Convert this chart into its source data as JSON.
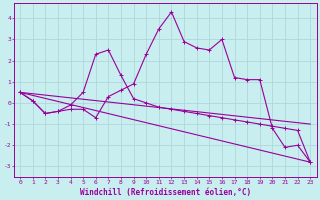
{
  "xlabel": "Windchill (Refroidissement éolien,°C)",
  "background_color": "#c8eef0",
  "line_color": "#990099",
  "grid_color": "#b0d8da",
  "xlim": [
    -0.5,
    23.5
  ],
  "ylim": [
    -3.5,
    4.7
  ],
  "yticks": [
    -3,
    -2,
    -1,
    0,
    1,
    2,
    3,
    4
  ],
  "xticks": [
    0,
    1,
    2,
    3,
    4,
    5,
    6,
    7,
    8,
    9,
    10,
    11,
    12,
    13,
    14,
    15,
    16,
    17,
    18,
    19,
    20,
    21,
    22,
    23
  ],
  "line1_x": [
    0,
    1,
    2,
    3,
    4,
    5,
    6,
    7,
    8,
    9,
    10,
    11,
    12,
    13,
    14,
    15,
    16,
    17,
    18,
    19,
    20,
    21,
    22,
    23
  ],
  "line1_y": [
    0.5,
    0.1,
    -0.5,
    -0.4,
    -0.3,
    -0.3,
    -0.7,
    0.3,
    0.6,
    0.9,
    2.3,
    3.5,
    4.3,
    2.9,
    2.6,
    2.5,
    3.0,
    1.2,
    1.1,
    1.1,
    -1.2,
    -2.1,
    -2.0,
    -2.8
  ],
  "line2_x": [
    0,
    1,
    2,
    3,
    4,
    5,
    6,
    7,
    8,
    9,
    10,
    11,
    12,
    13,
    14,
    15,
    16,
    17,
    18,
    19,
    20,
    21,
    22,
    23
  ],
  "line2_y": [
    0.5,
    0.1,
    -0.5,
    -0.4,
    -0.1,
    0.5,
    2.3,
    2.5,
    1.3,
    0.2,
    0.0,
    -0.2,
    -0.3,
    -0.4,
    -0.5,
    -0.6,
    -0.7,
    -0.8,
    -0.9,
    -1.0,
    -1.1,
    -1.2,
    -1.3,
    -2.8
  ],
  "line3_x": [
    0,
    23
  ],
  "line3_y": [
    0.5,
    -1.0
  ],
  "line4_x": [
    0,
    23
  ],
  "line4_y": [
    0.5,
    -2.8
  ]
}
